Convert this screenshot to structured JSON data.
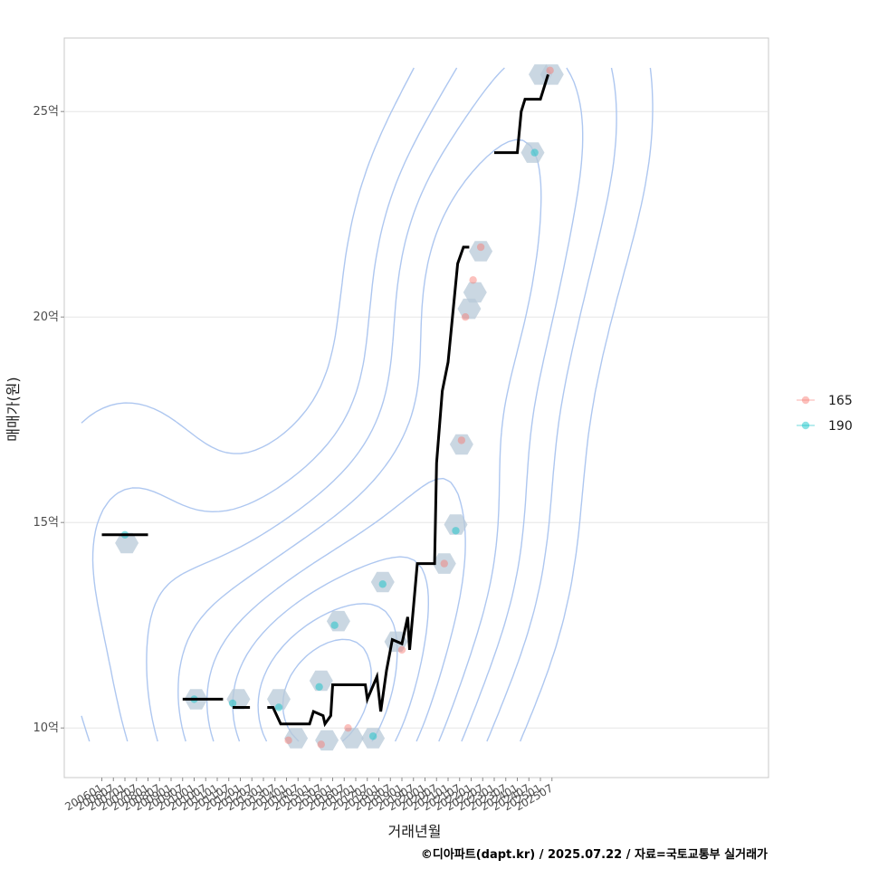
{
  "chart_data": {
    "type": "scatter",
    "title": "",
    "xlabel": "거래년월",
    "ylabel": "매매가(원)",
    "ylim": [
      8.9,
      26.8
    ],
    "x_ticks": [
      "200601",
      "200607",
      "200701",
      "200707",
      "200801",
      "200807",
      "200901",
      "200907",
      "201001",
      "201007",
      "201101",
      "201107",
      "201201",
      "201207",
      "201301",
      "201307",
      "201401",
      "201407",
      "201501",
      "201507",
      "201601",
      "201607",
      "201701",
      "201707",
      "201801",
      "201807",
      "201901",
      "201907",
      "202001",
      "202007",
      "202101",
      "202107",
      "202201",
      "202207",
      "202301",
      "202307",
      "202401",
      "202407",
      "202501",
      "202507"
    ],
    "y_ticks": [
      {
        "value": 10,
        "label": "10억"
      },
      {
        "value": 15,
        "label": "15억"
      },
      {
        "value": 20,
        "label": "20억"
      },
      {
        "value": 25,
        "label": "25억"
      }
    ],
    "grid": true,
    "legend_position": "right",
    "legend": [
      {
        "name": "165",
        "color": "#f8766d"
      },
      {
        "name": "190",
        "color": "#00bfc4"
      }
    ],
    "series": [
      {
        "name": "165",
        "color": "#f8766d",
        "points": [
          [
            "201402",
            9.7
          ],
          [
            "201507",
            9.6
          ],
          [
            "201609",
            10.0
          ],
          [
            "201901",
            11.9
          ],
          [
            "202011",
            14.0
          ],
          [
            "202108",
            17.0
          ],
          [
            "202110",
            20.0
          ],
          [
            "202202",
            20.9
          ],
          [
            "202206",
            21.7
          ],
          [
            "202506",
            26.0
          ]
        ]
      },
      {
        "name": "190",
        "color": "#00bfc4",
        "points": [
          [
            "200701",
            14.7
          ],
          [
            "201001",
            10.7
          ],
          [
            "201109",
            10.6
          ],
          [
            "201309",
            10.5
          ],
          [
            "201506",
            11.0
          ],
          [
            "201602",
            12.5
          ],
          [
            "201710",
            9.8
          ],
          [
            "201803",
            13.5
          ],
          [
            "202105",
            14.8
          ],
          [
            "202410",
            24.0
          ]
        ]
      }
    ],
    "hexbins": [
      [
        "200702",
        14.5
      ],
      [
        "201002",
        10.7
      ],
      [
        "201112",
        10.7
      ],
      [
        "201309",
        10.7
      ],
      [
        "201406",
        9.75
      ],
      [
        "201507",
        11.15
      ],
      [
        "201510",
        9.7
      ],
      [
        "201604",
        12.6
      ],
      [
        "201611",
        9.75
      ],
      [
        "201710",
        9.75
      ],
      [
        "201803",
        13.55
      ],
      [
        "201810",
        12.1
      ],
      [
        "202011",
        14.0
      ],
      [
        "202105",
        14.95
      ],
      [
        "202108",
        16.9
      ],
      [
        "202112",
        20.2
      ],
      [
        "202203",
        20.6
      ],
      [
        "202206",
        21.6
      ],
      [
        "202409",
        24.0
      ],
      [
        "202501",
        25.9
      ],
      [
        "202507",
        25.9
      ]
    ],
    "median_segments": [
      [
        [
          "200601",
          14.7
        ],
        [
          "200801",
          14.7
        ]
      ],
      [
        [
          "200907",
          10.7
        ],
        [
          "201104",
          10.7
        ]
      ],
      [
        [
          "201109",
          10.5
        ],
        [
          "201206",
          10.5
        ]
      ],
      [
        [
          "201303",
          10.5
        ],
        [
          "201306",
          10.5
        ],
        [
          "201310",
          10.1
        ],
        [
          "201501",
          10.1
        ],
        [
          "201503",
          10.4
        ],
        [
          "201508",
          10.3
        ],
        [
          "201509",
          10.1
        ],
        [
          "201512",
          10.3
        ],
        [
          "201601",
          11.05
        ],
        [
          "201706",
          11.05
        ],
        [
          "201707",
          10.7
        ],
        [
          "201712",
          11.25
        ],
        [
          "201802",
          10.4
        ],
        [
          "201805",
          11.4
        ],
        [
          "201808",
          12.15
        ],
        [
          "201901",
          12.05
        ],
        [
          "201904",
          12.7
        ],
        [
          "201905",
          11.9
        ],
        [
          "201907",
          12.95
        ],
        [
          "201909",
          14.0
        ],
        [
          "202006",
          14.0
        ],
        [
          "202007",
          16.45
        ],
        [
          "202010",
          18.2
        ],
        [
          "202101",
          18.9
        ],
        [
          "202106",
          21.3
        ],
        [
          "202109",
          21.7
        ],
        [
          "202112",
          21.7
        ]
      ],
      [
        [
          "202301",
          24.0
        ],
        [
          "202401",
          24.0
        ],
        [
          "202403",
          25.0
        ],
        [
          "202405",
          25.3
        ],
        [
          "202501",
          25.3
        ],
        [
          "202505",
          25.9
        ]
      ]
    ],
    "density_color": "#aec7f0",
    "hex_color": "#b8cad8"
  },
  "credit": "©디아파트(dapt.kr) / 2025.07.22 / 자료=국토교통부 실거래가"
}
